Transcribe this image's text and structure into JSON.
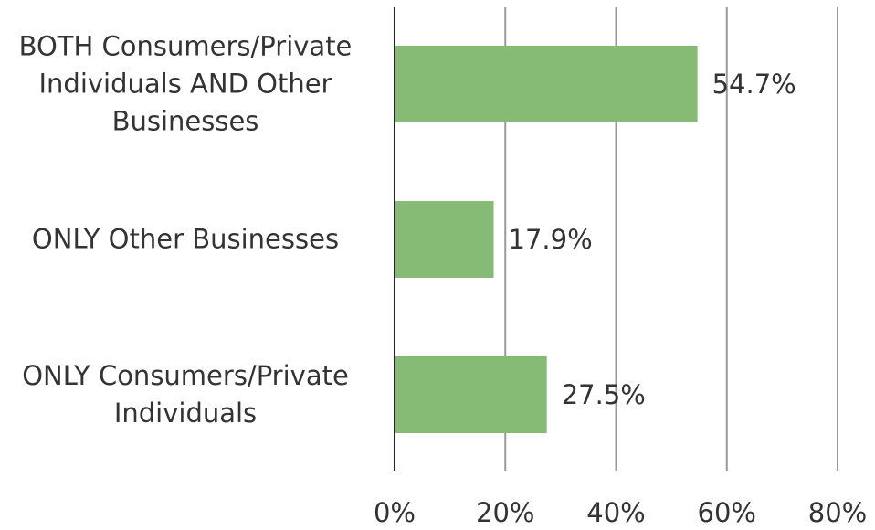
{
  "chart_data": {
    "type": "barh",
    "categories": [
      "BOTH Consumers/Private Individuals AND Other Businesses",
      "ONLY Other Businesses",
      "ONLY Consumers/Private Individuals"
    ],
    "values": [
      54.7,
      17.9,
      27.5
    ],
    "value_labels": [
      "54.7%",
      "17.9%",
      "27.5%"
    ],
    "color": "#85bb74",
    "xlim": [
      0,
      80
    ],
    "xticks": [
      {
        "value": 0,
        "label": "0%"
      },
      {
        "value": 20,
        "label": "20%"
      },
      {
        "value": 40,
        "label": "40%"
      },
      {
        "value": 60,
        "label": "60%"
      },
      {
        "value": 80,
        "label": "80%"
      }
    ],
    "grid": true
  }
}
